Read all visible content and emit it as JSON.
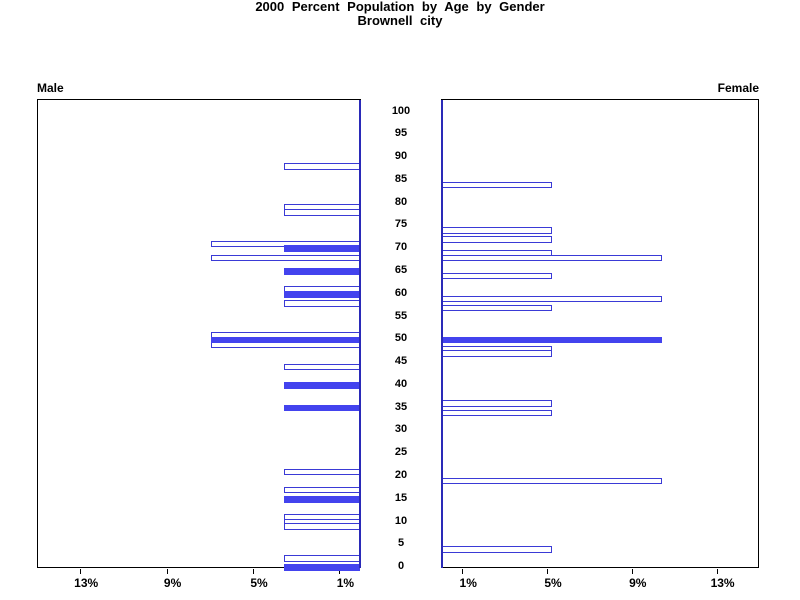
{
  "title": {
    "line1": "2000 Percent Population by Age by Gender",
    "line2": "Brownell city"
  },
  "labels": {
    "male": "Male",
    "female": "Female"
  },
  "colors": {
    "bar_fill": "#4343EE",
    "bar_outline": "#3A3AD6",
    "zero_axis": "#2A2AB8",
    "frame": "#000000",
    "text": "#000000",
    "background": "#FFFFFF"
  },
  "chart_data": {
    "type": "bar",
    "variant": "population-pyramid",
    "title": "2000 Percent Population by Age by Gender",
    "subtitle": "Brownell city",
    "value_unit": "percent of population",
    "x_axis": {
      "max": 15,
      "tick_values": [
        1,
        5,
        9,
        13
      ],
      "tick_suffix": "%",
      "male_tick_labels": [
        "13%",
        "9%",
        "5%",
        "1%"
      ],
      "female_tick_labels": [
        "1%",
        "5%",
        "9%",
        "13%"
      ]
    },
    "age_axis": {
      "min": 0,
      "max": 100,
      "step": 5
    },
    "series": [
      {
        "name": "Male",
        "side": "left",
        "points": [
          {
            "age": 88,
            "value": 3.5,
            "filled": false
          },
          {
            "age": 79,
            "value": 3.5,
            "filled": false
          },
          {
            "age": 78,
            "value": 3.5,
            "filled": false
          },
          {
            "age": 71,
            "value": 6.9,
            "filled": false
          },
          {
            "age": 70,
            "value": 3.5,
            "filled": true
          },
          {
            "age": 68,
            "value": 6.9,
            "filled": false
          },
          {
            "age": 65,
            "value": 3.5,
            "filled": true
          },
          {
            "age": 61,
            "value": 3.5,
            "filled": false
          },
          {
            "age": 60,
            "value": 3.5,
            "filled": true
          },
          {
            "age": 58,
            "value": 3.5,
            "filled": false
          },
          {
            "age": 51,
            "value": 6.9,
            "filled": false
          },
          {
            "age": 50,
            "value": 6.9,
            "filled": true
          },
          {
            "age": 49,
            "value": 6.9,
            "filled": false
          },
          {
            "age": 44,
            "value": 3.5,
            "filled": false
          },
          {
            "age": 40,
            "value": 3.5,
            "filled": true
          },
          {
            "age": 35,
            "value": 3.5,
            "filled": true
          },
          {
            "age": 21,
            "value": 3.5,
            "filled": false
          },
          {
            "age": 17,
            "value": 3.5,
            "filled": false
          },
          {
            "age": 15,
            "value": 3.5,
            "filled": true
          },
          {
            "age": 11,
            "value": 3.5,
            "filled": false
          },
          {
            "age": 10,
            "value": 3.5,
            "filled": false
          },
          {
            "age": 9,
            "value": 3.5,
            "filled": false
          },
          {
            "age": 2,
            "value": 3.5,
            "filled": false
          },
          {
            "age": 0,
            "value": 3.5,
            "filled": true
          }
        ]
      },
      {
        "name": "Female",
        "side": "right",
        "points": [
          {
            "age": 84,
            "value": 5.2,
            "filled": false
          },
          {
            "age": 74,
            "value": 5.2,
            "filled": false
          },
          {
            "age": 72,
            "value": 5.2,
            "filled": false
          },
          {
            "age": 69,
            "value": 5.2,
            "filled": false
          },
          {
            "age": 68,
            "value": 10.4,
            "filled": false
          },
          {
            "age": 64,
            "value": 5.2,
            "filled": false
          },
          {
            "age": 59,
            "value": 10.4,
            "filled": false
          },
          {
            "age": 57,
            "value": 5.2,
            "filled": false
          },
          {
            "age": 50,
            "value": 10.4,
            "filled": true
          },
          {
            "age": 48,
            "value": 5.2,
            "filled": false
          },
          {
            "age": 47,
            "value": 5.2,
            "filled": false
          },
          {
            "age": 36,
            "value": 5.2,
            "filled": false
          },
          {
            "age": 34,
            "value": 5.2,
            "filled": false
          },
          {
            "age": 19,
            "value": 10.4,
            "filled": false
          },
          {
            "age": 4,
            "value": 5.2,
            "filled": false
          }
        ]
      }
    ]
  }
}
